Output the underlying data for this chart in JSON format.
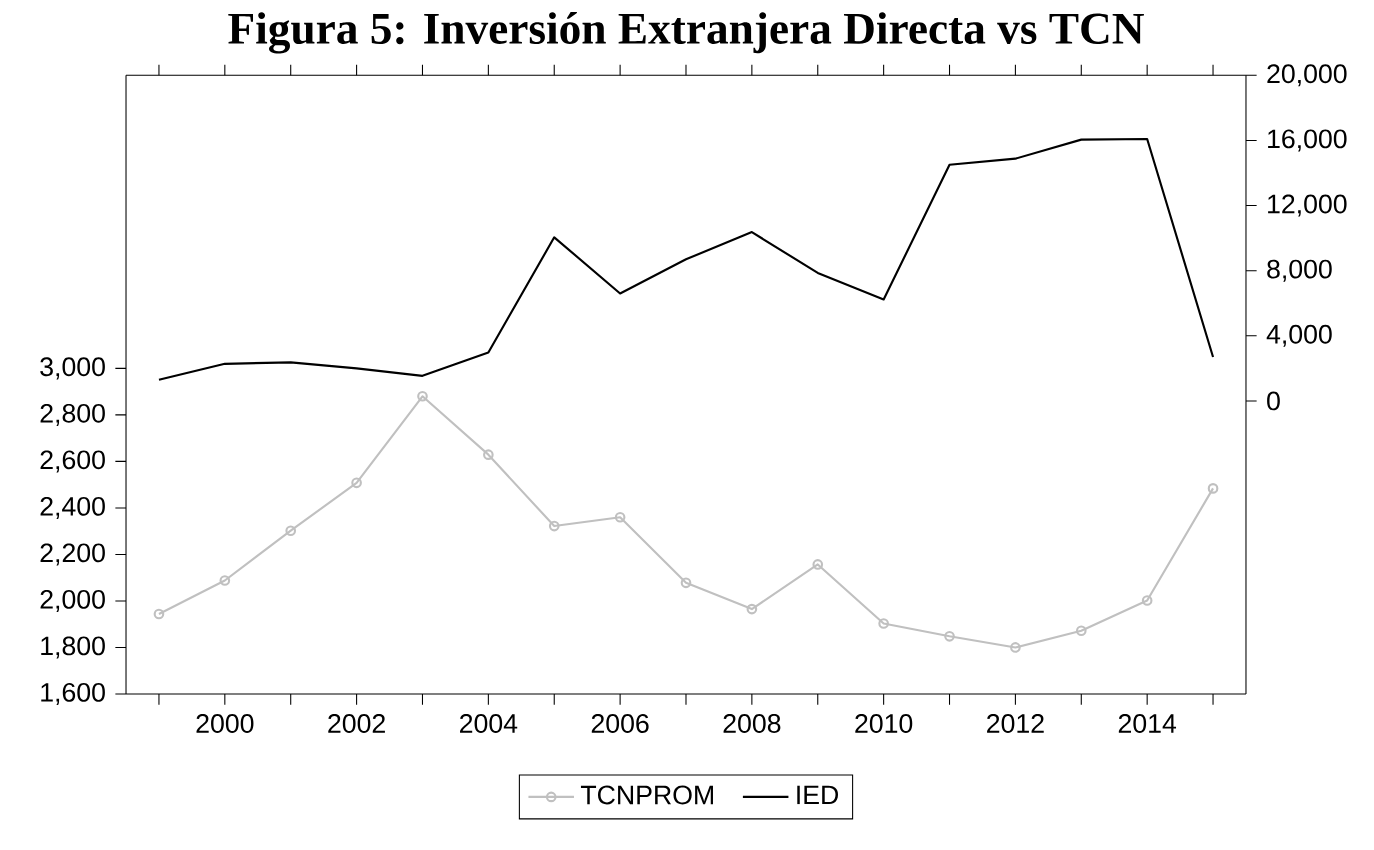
{
  "chart_data": {
    "type": "line",
    "title": "Figura 5: Inversión Extranjera Directa vs TCN",
    "x": [
      1999,
      2000,
      2001,
      2002,
      2003,
      2004,
      2005,
      2006,
      2007,
      2008,
      2009,
      2010,
      2011,
      2012,
      2013,
      2014,
      2015
    ],
    "series": [
      {
        "name": "TCNPROM",
        "color": "#c0c0c0",
        "marker": "circle",
        "values": [
          1944,
          2088,
          2302,
          2508,
          2880,
          2629,
          2322,
          2360,
          2078,
          1965,
          2157,
          1903,
          1848,
          1800,
          1872,
          2002,
          2484
        ]
      },
      {
        "name": "IED",
        "color": "#000000",
        "axis": "y2",
        "values": [
          1300,
          2280,
          2370,
          2000,
          1540,
          2980,
          10050,
          6600,
          8700,
          10370,
          7860,
          6230,
          14510,
          14880,
          16050,
          16090,
          2700
        ]
      }
    ],
    "xlim": [
      1998.5,
      2015.5
    ],
    "xticks": [
      {
        "value": 1999,
        "label": null
      },
      2000,
      {
        "value": 2001,
        "label": null
      },
      2002,
      {
        "value": 2003,
        "label": null
      },
      2004,
      {
        "value": 2005,
        "label": null
      },
      2006,
      {
        "value": 2007,
        "label": null
      },
      2008,
      {
        "value": 2009,
        "label": null
      },
      2010,
      {
        "value": 2011,
        "label": null
      },
      2012,
      {
        "value": 2013,
        "label": null
      },
      2014,
      {
        "value": 2015,
        "label": null
      }
    ],
    "ylim": [
      1600,
      4260
    ],
    "yticks": [
      {
        "value": 1600,
        "label": "1,600"
      },
      {
        "value": 1800,
        "label": "1,800"
      },
      {
        "value": 2000,
        "label": "2,000"
      },
      {
        "value": 2200,
        "label": "2,200"
      },
      {
        "value": 2400,
        "label": "2,400"
      },
      {
        "value": 2600,
        "label": "2,600"
      },
      {
        "value": 2800,
        "label": "2,800"
      },
      {
        "value": 3000,
        "label": "3,000"
      }
    ],
    "y2lim": [
      -18000,
      20000
    ],
    "y2ticks": [
      0,
      {
        "value": 4000,
        "label": "4,000"
      },
      {
        "value": 8000,
        "label": "8,000"
      },
      {
        "value": 12000,
        "label": "12,000"
      },
      {
        "value": 16000,
        "label": "16,000"
      },
      {
        "value": 20000,
        "label": "20,000"
      }
    ],
    "legend": "bottom",
    "grid": false,
    "line_style": "solid"
  }
}
